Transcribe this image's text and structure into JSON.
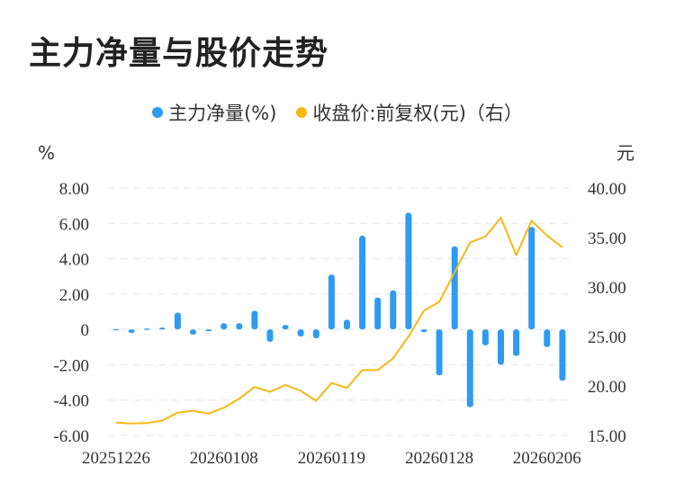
{
  "title": "主力净量与股价走势",
  "legend": [
    {
      "label": "主力净量(%)",
      "color": "#2e9bf0"
    },
    {
      "label": "收盘价:前复权(元)（右）",
      "color": "#f5b914"
    }
  ],
  "chart_data": {
    "type": "bar+line",
    "left_unit": "%",
    "right_unit": "元",
    "left_ylim": [
      -6,
      8
    ],
    "left_ticks": [
      "8.00",
      "6.00",
      "4.00",
      "2.00",
      "0",
      "-2.00",
      "-4.00",
      "-6.00"
    ],
    "right_ylim": [
      15,
      40
    ],
    "right_ticks": [
      "40.00",
      "35.00",
      "30.00",
      "25.00",
      "20.00",
      "15.00"
    ],
    "x_tick_labels": [
      "20251226",
      "20260108",
      "20260119",
      "20260128",
      "20260206"
    ],
    "x_tick_index": [
      0,
      7,
      14,
      21,
      28
    ],
    "series": [
      {
        "name": "主力净量(%)",
        "type": "bar",
        "color": "#2e9bf0",
        "values": [
          0.02,
          -0.2,
          0.05,
          0.1,
          0.95,
          -0.3,
          -0.1,
          0.35,
          0.35,
          1.05,
          -0.7,
          0.25,
          -0.4,
          -0.5,
          3.1,
          0.55,
          5.3,
          1.8,
          2.2,
          6.6,
          -0.15,
          -2.6,
          4.7,
          -4.4,
          -0.9,
          -2.0,
          -1.5,
          5.8,
          -1.0,
          -2.9
        ]
      },
      {
        "name": "收盘价:前复权(元)（右）",
        "type": "line",
        "color": "#f5b914",
        "values": [
          16.3,
          16.2,
          16.25,
          16.5,
          17.3,
          17.5,
          17.2,
          17.8,
          18.7,
          19.9,
          19.4,
          20.1,
          19.5,
          18.5,
          20.3,
          19.8,
          21.6,
          21.6,
          22.8,
          25.0,
          27.6,
          28.5,
          31.5,
          34.5,
          35.1,
          37.0,
          33.2,
          36.7,
          35.2,
          34.0
        ]
      }
    ]
  }
}
